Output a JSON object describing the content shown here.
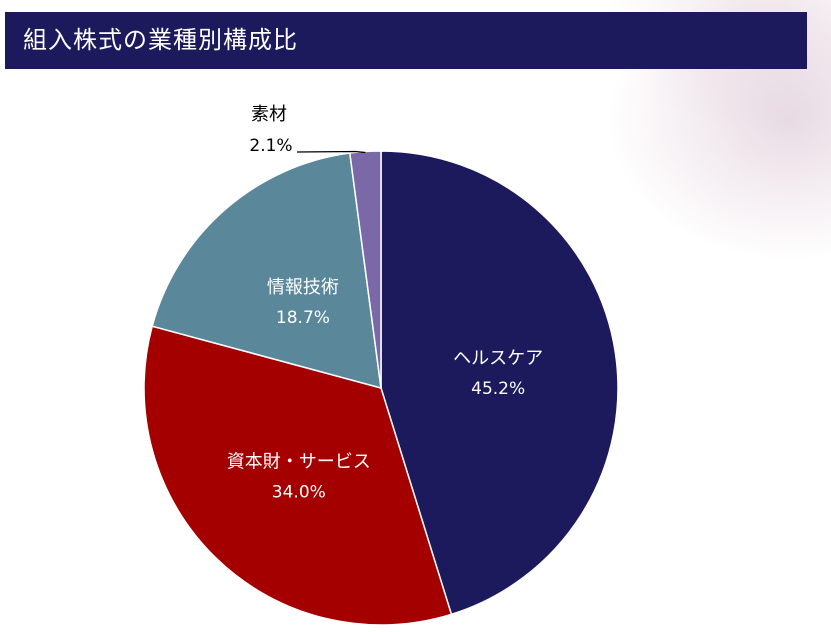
{
  "header": {
    "title": "組入株式の業種別構成比"
  },
  "chart_data": {
    "type": "pie",
    "title": "組入株式の業種別構成比",
    "start_angle_deg": 0,
    "direction": "clockwise",
    "slices": [
      {
        "label": "ヘルスケア",
        "value": 45.2,
        "display": "45.2%",
        "color": "#1c1a5c",
        "label_color": "#ffffff",
        "label_position": "inside"
      },
      {
        "label": "資本財・サービス",
        "value": 34.0,
        "display": "34.0%",
        "color": "#a50000",
        "label_color": "#ffffff",
        "label_position": "inside"
      },
      {
        "label": "情報技術",
        "value": 18.7,
        "display": "18.7%",
        "color": "#5b879b",
        "label_color": "#ffffff",
        "label_position": "inside"
      },
      {
        "label": "素材",
        "value": 2.1,
        "display": "2.1%",
        "color": "#7b68a8",
        "label_color": "#000000",
        "label_position": "outside"
      }
    ]
  }
}
